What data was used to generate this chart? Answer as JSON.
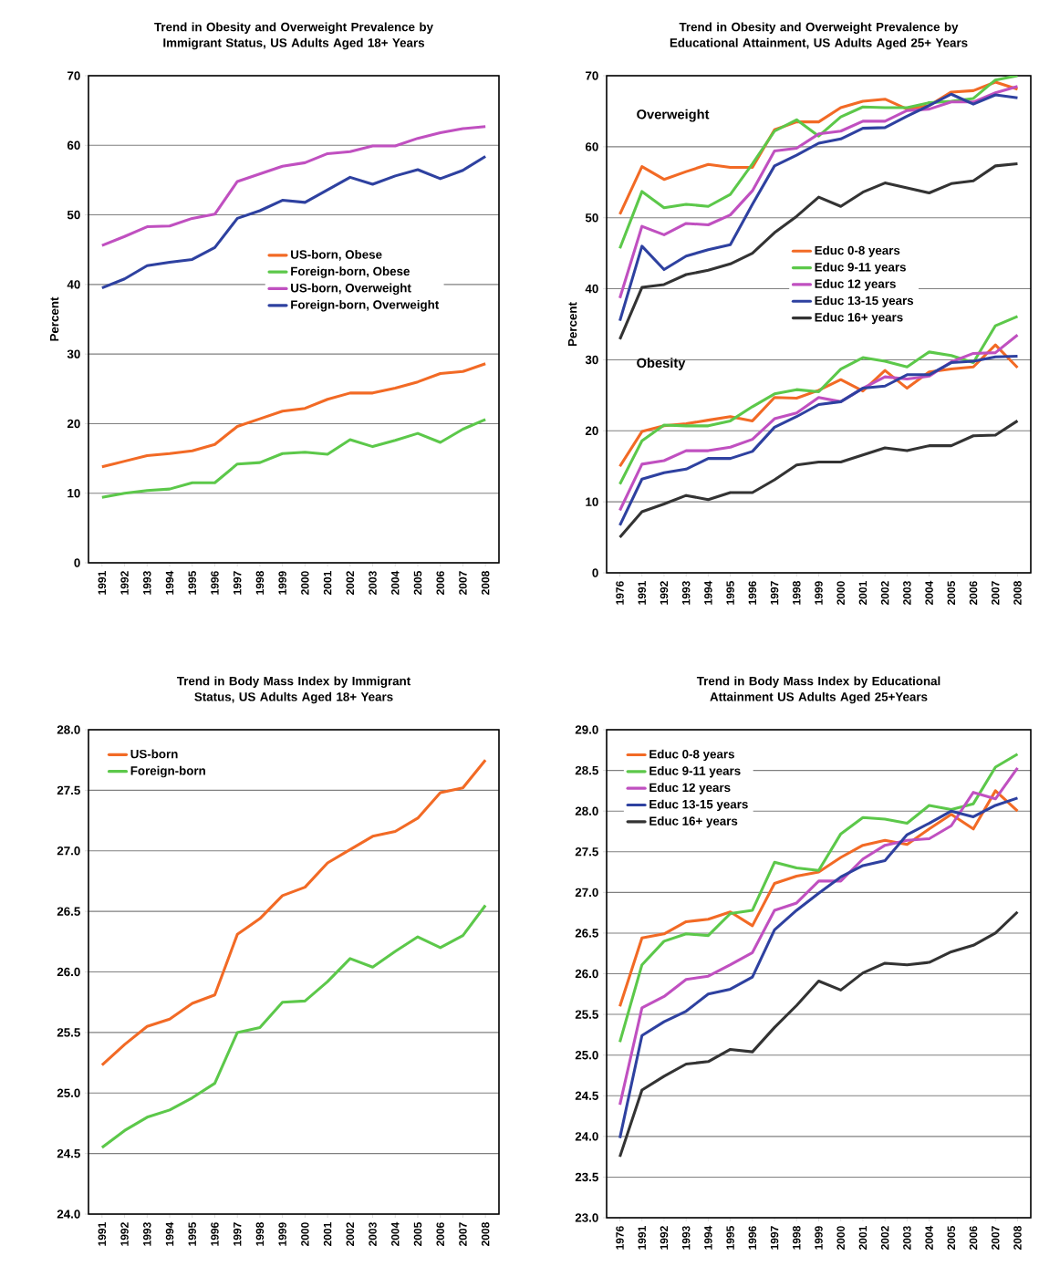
{
  "chart_data": [
    {
      "type": "line",
      "title": "Trend in Obesity and Overweight Prevalence by Immigrant Status, US Adults Aged 18+ Years",
      "ylabel": "Percent",
      "categories": [
        "1991",
        "1992",
        "1993",
        "1994",
        "1995",
        "1996",
        "1997",
        "1998",
        "1999",
        "2000",
        "2001",
        "2002",
        "2003",
        "2004",
        "2005",
        "2006",
        "2007",
        "2008"
      ],
      "ylim": [
        0,
        70
      ],
      "yticks": [
        0,
        10,
        20,
        30,
        40,
        50,
        60,
        70
      ],
      "grid": "y",
      "legend": "right",
      "series": [
        {
          "name": "US-born, Obese",
          "color": "#f26a25",
          "values": [
            13.8,
            14.6,
            15.4,
            15.7,
            16.1,
            17.0,
            19.6,
            20.7,
            21.8,
            22.2,
            23.5,
            24.4,
            24.4,
            25.1,
            26.0,
            27.2,
            27.5,
            28.6
          ]
        },
        {
          "name": "Foreign-born, Obese",
          "color": "#5cc84a",
          "values": [
            9.4,
            10.0,
            10.4,
            10.6,
            11.5,
            11.5,
            14.2,
            14.4,
            15.7,
            15.9,
            15.6,
            17.7,
            16.7,
            17.6,
            18.6,
            17.3,
            19.2,
            20.6
          ]
        },
        {
          "name": "US-born, Overweight",
          "color": "#c050c0",
          "values": [
            45.6,
            46.9,
            48.3,
            48.4,
            49.5,
            50.1,
            54.8,
            55.9,
            57.0,
            57.5,
            58.8,
            59.1,
            59.9,
            59.9,
            61.0,
            61.8,
            62.4,
            62.7
          ]
        },
        {
          "name": "Foreign-born, Overweight",
          "color": "#2e41a0",
          "values": [
            39.5,
            40.8,
            42.7,
            43.2,
            43.6,
            45.3,
            49.5,
            50.6,
            52.1,
            51.8,
            53.6,
            55.4,
            54.4,
            55.6,
            56.5,
            55.2,
            56.4,
            58.4
          ]
        }
      ]
    },
    {
      "type": "line",
      "title": "Trend in Obesity and Overweight Prevalence by Educational Attainment, US Adults Aged 25+ Years",
      "ylabel": "Percent",
      "categories": [
        "1976",
        "1991",
        "1992",
        "1993",
        "1994",
        "1995",
        "1996",
        "1997",
        "1998",
        "1999",
        "2000",
        "2001",
        "2002",
        "2003",
        "2004",
        "2005",
        "2006",
        "2007",
        "2008"
      ],
      "ylim": [
        0,
        70
      ],
      "yticks": [
        0,
        10,
        20,
        30,
        40,
        50,
        60,
        70
      ],
      "grid": "y",
      "legend": "center",
      "annotations": [
        "Overweight",
        "Obesity"
      ],
      "series": [
        {
          "name": "Educ 0-8 years",
          "color": "#f26a25",
          "values": [
            50.5,
            57.2,
            55.4,
            56.5,
            57.5,
            57.1,
            57.1,
            62.4,
            63.5,
            63.5,
            65.5,
            66.4,
            66.7,
            65.3,
            65.8,
            67.7,
            67.9,
            69.1,
            68.1
          ]
        },
        {
          "name": "Educ 9-11 years",
          "color": "#5cc84a",
          "values": [
            45.7,
            53.7,
            51.4,
            51.9,
            51.6,
            53.3,
            57.6,
            62.2,
            63.8,
            61.5,
            64.2,
            65.6,
            65.5,
            65.5,
            66.2,
            66.4,
            66.8,
            69.4,
            70.0
          ]
        },
        {
          "name": "Educ 12 years",
          "color": "#c050c0",
          "values": [
            38.7,
            48.8,
            47.6,
            49.2,
            49.0,
            50.4,
            53.8,
            59.4,
            59.8,
            61.8,
            62.2,
            63.6,
            63.6,
            65.1,
            65.3,
            66.3,
            66.3,
            67.6,
            68.5
          ]
        },
        {
          "name": "Educ 13-15 years",
          "color": "#2e41a0",
          "values": [
            35.5,
            46.0,
            42.7,
            44.6,
            45.5,
            46.2,
            51.9,
            57.3,
            58.8,
            60.5,
            61.1,
            62.6,
            62.7,
            64.3,
            65.8,
            67.4,
            66.0,
            67.3,
            66.9
          ]
        },
        {
          "name": "Educ 16+ years",
          "color": "#333333",
          "values": [
            32.9,
            40.2,
            40.6,
            42.0,
            42.6,
            43.5,
            45.0,
            47.9,
            50.2,
            52.9,
            51.6,
            53.6,
            54.9,
            54.2,
            53.5,
            54.8,
            55.2,
            57.3,
            57.6
          ]
        },
        {
          "color": "#f26a25",
          "values": [
            15.0,
            19.9,
            20.7,
            21.0,
            21.5,
            22.0,
            21.4,
            24.7,
            24.6,
            25.7,
            27.2,
            25.6,
            28.5,
            26.0,
            28.3,
            28.7,
            29.0,
            32.1,
            28.9
          ]
        },
        {
          "color": "#5cc84a",
          "values": [
            12.5,
            18.6,
            20.8,
            20.7,
            20.7,
            21.4,
            23.4,
            25.2,
            25.8,
            25.5,
            28.7,
            30.3,
            29.8,
            29.0,
            31.1,
            30.6,
            29.6,
            34.8,
            36.1
          ]
        },
        {
          "color": "#c050c0",
          "values": [
            8.8,
            15.3,
            15.8,
            17.2,
            17.2,
            17.7,
            18.8,
            21.7,
            22.5,
            24.7,
            24.1,
            26.0,
            27.6,
            27.3,
            27.7,
            29.7,
            30.9,
            31.0,
            33.5
          ]
        },
        {
          "color": "#2e41a0",
          "values": [
            6.7,
            13.2,
            14.1,
            14.6,
            16.1,
            16.1,
            17.1,
            20.5,
            22.0,
            23.7,
            24.1,
            26.0,
            26.3,
            27.9,
            27.9,
            29.6,
            29.8,
            30.4,
            30.5
          ]
        },
        {
          "color": "#333333",
          "values": [
            5.0,
            8.6,
            9.7,
            10.9,
            10.3,
            11.3,
            11.3,
            13.1,
            15.2,
            15.6,
            15.6,
            16.6,
            17.6,
            17.2,
            17.9,
            17.9,
            19.3,
            19.4,
            21.4
          ]
        }
      ]
    },
    {
      "type": "line",
      "title": "Trend in Body Mass Index by Immigrant Status, US Adults Aged 18+ Years",
      "categories": [
        "1991",
        "1992",
        "1993",
        "1994",
        "1995",
        "1996",
        "1997",
        "1998",
        "1999",
        "2000",
        "2001",
        "2002",
        "2003",
        "2004",
        "2005",
        "2006",
        "2007",
        "2008"
      ],
      "ylim": [
        24,
        28
      ],
      "yticks": [
        {
          "value": 24,
          "label": "24.0"
        },
        24.5,
        {
          "value": 25,
          "label": "25.0"
        },
        25.5,
        {
          "value": 26,
          "label": "26.0"
        },
        26.5,
        {
          "value": 27,
          "label": "27.0"
        },
        27.5,
        {
          "value": 28,
          "label": "28.0"
        }
      ],
      "grid": "y",
      "legend": "top left",
      "series": [
        {
          "name": "US-born",
          "color": "#f26a25",
          "values": [
            25.23,
            25.4,
            25.55,
            25.61,
            25.74,
            25.81,
            26.31,
            26.44,
            26.63,
            26.7,
            26.9,
            27.01,
            27.12,
            27.16,
            27.27,
            27.48,
            27.52,
            27.75
          ]
        },
        {
          "name": "Foreign-born",
          "color": "#5cc84a",
          "values": [
            24.55,
            24.69,
            24.8,
            24.86,
            24.96,
            25.08,
            25.5,
            25.54,
            25.75,
            25.76,
            25.92,
            26.11,
            26.04,
            26.17,
            26.29,
            26.2,
            26.3,
            26.55
          ]
        }
      ]
    },
    {
      "type": "line",
      "title": "Trend in Body Mass Index by Educational Attainment US Adults Aged 25+Years",
      "categories": [
        "1976",
        "1991",
        "1992",
        "1993",
        "1994",
        "1995",
        "1996",
        "1997",
        "1998",
        "1999",
        "2000",
        "2001",
        "2002",
        "2003",
        "2004",
        "2005",
        "2006",
        "2007",
        "2008"
      ],
      "ylim": [
        23,
        29
      ],
      "yticks": [
        {
          "value": 23,
          "label": "23.0"
        },
        23.5,
        {
          "value": 24,
          "label": "24.0"
        },
        24.5,
        {
          "value": 25,
          "label": "25.0"
        },
        25.5,
        {
          "value": 26,
          "label": "26.0"
        },
        26.5,
        {
          "value": 27,
          "label": "27.0"
        },
        27.5,
        {
          "value": 28,
          "label": "28.0"
        },
        28.5,
        {
          "value": 29,
          "label": "29.0"
        }
      ],
      "grid": "y",
      "legend": "top left",
      "series": [
        {
          "name": "Educ 0-8 years",
          "color": "#f26a25",
          "values": [
            25.6,
            26.44,
            26.49,
            26.64,
            26.67,
            26.76,
            26.59,
            27.11,
            27.2,
            27.25,
            27.43,
            27.58,
            27.64,
            27.59,
            27.78,
            27.96,
            27.78,
            28.25,
            28.0
          ]
        },
        {
          "name": "Educ 9-11 years",
          "color": "#5cc84a",
          "values": [
            25.16,
            26.11,
            26.4,
            26.49,
            26.47,
            26.74,
            26.78,
            27.37,
            27.3,
            27.27,
            27.72,
            27.92,
            27.9,
            27.85,
            28.07,
            28.02,
            28.09,
            28.54,
            28.7
          ]
        },
        {
          "name": "Educ 12 years",
          "color": "#c050c0",
          "values": [
            24.39,
            25.58,
            25.72,
            25.93,
            25.97,
            26.11,
            26.26,
            26.78,
            26.87,
            27.14,
            27.14,
            27.41,
            27.58,
            27.64,
            27.66,
            27.82,
            28.23,
            28.15,
            28.53
          ]
        },
        {
          "name": "Educ 13-15 years",
          "color": "#2e41a0",
          "values": [
            23.98,
            25.24,
            25.41,
            25.54,
            25.75,
            25.81,
            25.96,
            26.54,
            26.78,
            26.99,
            27.19,
            27.33,
            27.39,
            27.71,
            27.85,
            28.0,
            27.93,
            28.07,
            28.16
          ]
        },
        {
          "name": "Educ 16+ years",
          "color": "#333333",
          "values": [
            23.75,
            24.57,
            24.74,
            24.89,
            24.92,
            25.07,
            25.04,
            25.34,
            25.61,
            25.91,
            25.8,
            26.01,
            26.13,
            26.11,
            26.14,
            26.27,
            26.35,
            26.5,
            26.76
          ]
        }
      ]
    }
  ]
}
